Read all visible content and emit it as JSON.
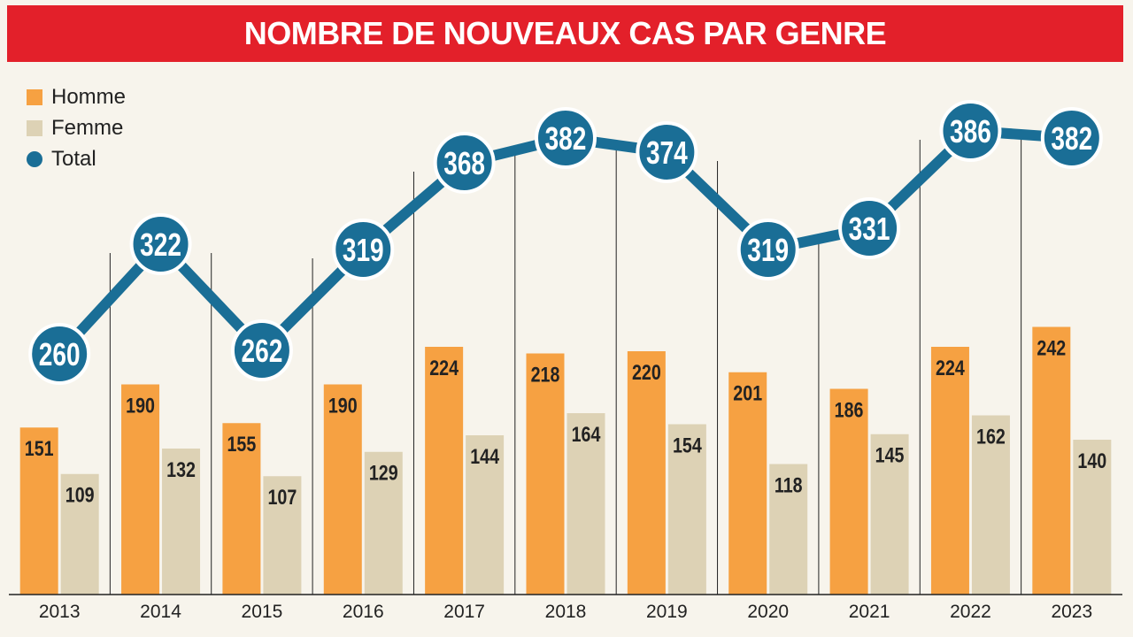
{
  "title": "NOMBRE DE NOUVEAUX CAS PAR GENRE",
  "legend": {
    "homme": "Homme",
    "femme": "Femme",
    "total": "Total"
  },
  "colors": {
    "title_bg": "#e3202a",
    "homme": "#f6a142",
    "femme": "#ddd2b5",
    "total": "#1a6e96",
    "background": "#f7f4ec"
  },
  "chart_data": {
    "type": "bar",
    "title": "NOMBRE DE NOUVEAUX CAS PAR GENRE",
    "categories": [
      "2013",
      "2014",
      "2015",
      "2016",
      "2017",
      "2018",
      "2019",
      "2020",
      "2021",
      "2022",
      "2023"
    ],
    "series": [
      {
        "name": "Homme",
        "type": "bar",
        "values": [
          151,
          190,
          155,
          190,
          224,
          218,
          220,
          201,
          186,
          224,
          242
        ]
      },
      {
        "name": "Femme",
        "type": "bar",
        "values": [
          109,
          132,
          107,
          129,
          144,
          164,
          154,
          118,
          145,
          162,
          140
        ]
      },
      {
        "name": "Total",
        "type": "line",
        "values": [
          260,
          322,
          262,
          319,
          368,
          382,
          374,
          319,
          331,
          386,
          382
        ]
      }
    ],
    "xlabel": "",
    "ylabel": "",
    "grid": false,
    "legend_position": "top-left"
  }
}
